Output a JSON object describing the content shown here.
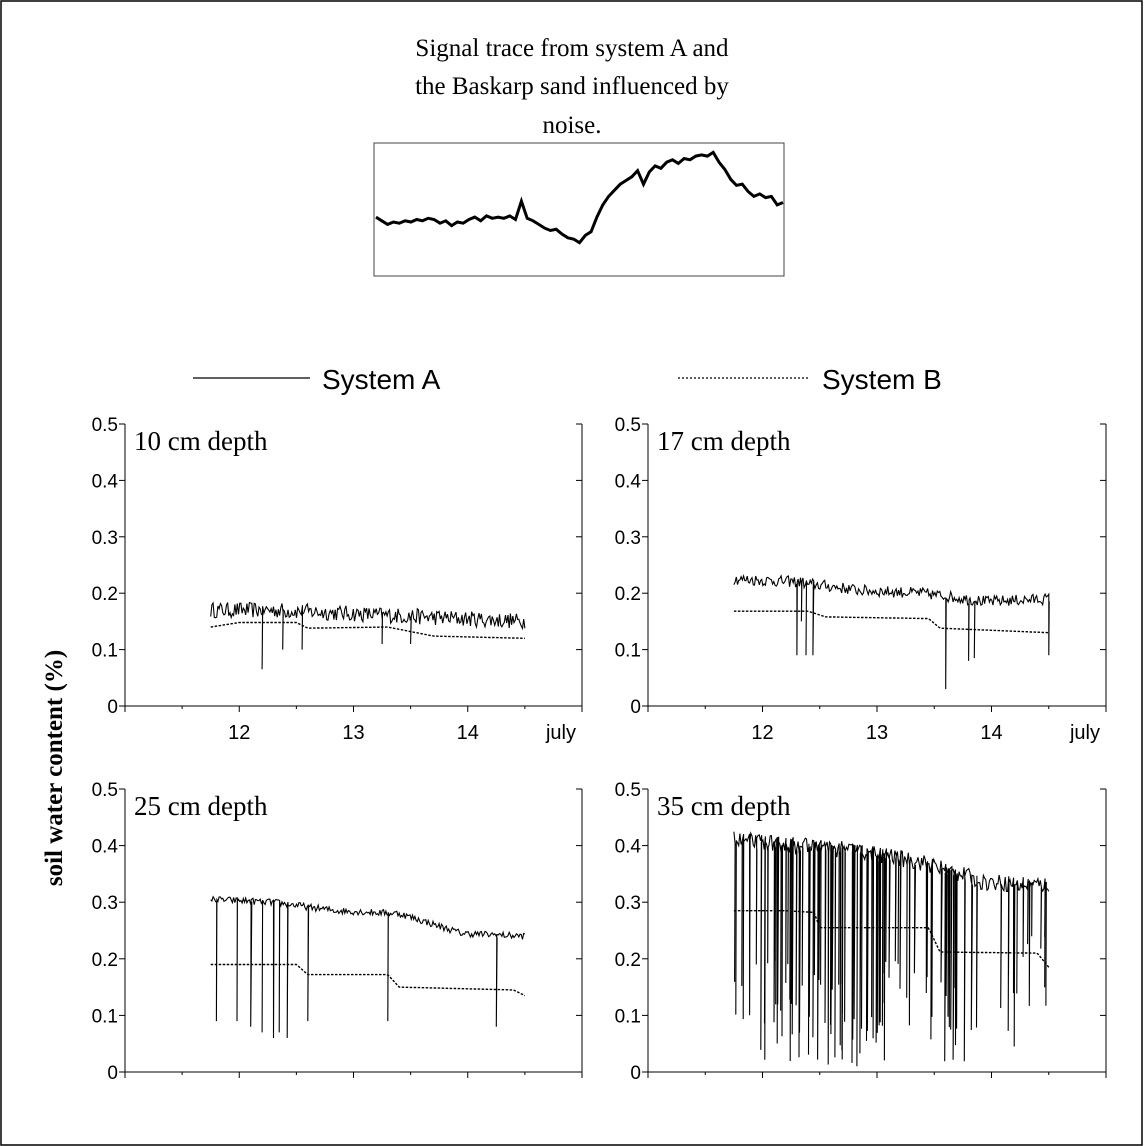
{
  "inset": {
    "title_lines": [
      "Signal trace from system A and",
      "the Baskarp sand influenced by",
      "noise."
    ],
    "trace": [
      0.45,
      0.42,
      0.39,
      0.41,
      0.4,
      0.42,
      0.41,
      0.43,
      0.42,
      0.44,
      0.43,
      0.4,
      0.42,
      0.38,
      0.41,
      0.4,
      0.43,
      0.45,
      0.42,
      0.46,
      0.44,
      0.45,
      0.44,
      0.46,
      0.43,
      0.58,
      0.44,
      0.42,
      0.39,
      0.36,
      0.34,
      0.35,
      0.31,
      0.28,
      0.27,
      0.24,
      0.3,
      0.33,
      0.45,
      0.55,
      0.62,
      0.67,
      0.72,
      0.75,
      0.78,
      0.83,
      0.72,
      0.82,
      0.87,
      0.85,
      0.9,
      0.92,
      0.89,
      0.93,
      0.92,
      0.95,
      0.96,
      0.95,
      0.98,
      0.9,
      0.84,
      0.76,
      0.71,
      0.72,
      0.66,
      0.62,
      0.64,
      0.61,
      0.62,
      0.55,
      0.57
    ]
  },
  "legend": {
    "a": "System A",
    "b": "System B"
  },
  "ylabel": "soil water content (%)",
  "chart_data": [
    {
      "type": "line",
      "panel": "10 cm depth",
      "xlabel": "july",
      "x_ticks": [
        "12",
        "13",
        "14"
      ],
      "xlim": [
        11,
        15
      ],
      "ylim": [
        0,
        0.5
      ],
      "y_ticks": [
        "0",
        "0.1",
        "0.2",
        "0.3",
        "0.4",
        "0.5"
      ],
      "series": [
        {
          "name": "System A",
          "dashed": false,
          "x_range": [
            11.75,
            14.5
          ],
          "baseline": [
            0.17,
            0.17,
            0.165,
            0.16,
            0.155,
            0.15
          ],
          "noise": 0.014,
          "spikes": [
            [
              12.2,
              0.065
            ],
            [
              12.38,
              0.1
            ],
            [
              12.55,
              0.1
            ],
            [
              13.25,
              0.11
            ],
            [
              13.5,
              0.11
            ]
          ]
        },
        {
          "name": "System B",
          "dashed": true,
          "x_range": [
            11.75,
            14.5
          ],
          "points": [
            [
              11.75,
              0.14
            ],
            [
              12.0,
              0.148
            ],
            [
              12.5,
              0.148
            ],
            [
              12.6,
              0.138
            ],
            [
              13.3,
              0.14
            ],
            [
              13.7,
              0.124
            ],
            [
              14.5,
              0.12
            ]
          ]
        }
      ]
    },
    {
      "type": "line",
      "panel": "17 cm depth",
      "xlabel": "july",
      "x_ticks": [
        "12",
        "13",
        "14"
      ],
      "xlim": [
        11,
        15
      ],
      "ylim": [
        0,
        0.5
      ],
      "y_ticks": [
        "0",
        "0.1",
        "0.2",
        "0.3",
        "0.4",
        "0.5"
      ],
      "series": [
        {
          "name": "System A",
          "dashed": false,
          "x_range": [
            11.75,
            14.5
          ],
          "baseline": [
            0.225,
            0.22,
            0.205,
            0.2,
            0.185,
            0.19
          ],
          "noise": 0.01,
          "spikes": [
            [
              12.3,
              0.09
            ],
            [
              12.34,
              0.15
            ],
            [
              12.38,
              0.09
            ],
            [
              12.44,
              0.09
            ],
            [
              13.6,
              0.03
            ],
            [
              13.8,
              0.08
            ],
            [
              13.85,
              0.085
            ],
            [
              14.5,
              0.09
            ]
          ]
        },
        {
          "name": "System B",
          "dashed": true,
          "x_range": [
            11.75,
            14.5
          ],
          "points": [
            [
              11.75,
              0.168
            ],
            [
              12.4,
              0.168
            ],
            [
              12.55,
              0.158
            ],
            [
              13.45,
              0.155
            ],
            [
              13.55,
              0.138
            ],
            [
              14.5,
              0.13
            ]
          ]
        }
      ]
    },
    {
      "type": "line",
      "panel": "25 cm depth",
      "xlabel": "",
      "x_ticks": [
        "",
        "",
        ""
      ],
      "xlim": [
        11,
        15
      ],
      "ylim": [
        0,
        0.5
      ],
      "y_ticks": [
        "0",
        "0.1",
        "0.2",
        "0.3",
        "0.4",
        "0.5"
      ],
      "series": [
        {
          "name": "System A",
          "dashed": false,
          "x_range": [
            11.75,
            14.5
          ],
          "baseline": [
            0.305,
            0.3,
            0.285,
            0.28,
            0.245,
            0.24
          ],
          "noise": 0.006,
          "spikes": [
            [
              11.8,
              0.09
            ],
            [
              11.98,
              0.09
            ],
            [
              12.1,
              0.08
            ],
            [
              12.2,
              0.07
            ],
            [
              12.3,
              0.06
            ],
            [
              12.35,
              0.07
            ],
            [
              12.42,
              0.06
            ],
            [
              12.6,
              0.09
            ],
            [
              13.3,
              0.09
            ],
            [
              14.25,
              0.08
            ]
          ]
        },
        {
          "name": "System B",
          "dashed": true,
          "x_range": [
            11.75,
            14.5
          ],
          "points": [
            [
              11.75,
              0.19
            ],
            [
              12.5,
              0.19
            ],
            [
              12.6,
              0.172
            ],
            [
              13.3,
              0.172
            ],
            [
              13.4,
              0.15
            ],
            [
              14.4,
              0.145
            ],
            [
              14.5,
              0.135
            ]
          ]
        }
      ]
    },
    {
      "type": "line",
      "panel": "35 cm depth",
      "xlabel": "",
      "x_ticks": [
        "",
        "",
        ""
      ],
      "xlim": [
        11,
        15
      ],
      "ylim": [
        0,
        0.5
      ],
      "y_ticks": [
        "0",
        "0.1",
        "0.2",
        "0.3",
        "0.4",
        "0.5"
      ],
      "series": [
        {
          "name": "System A",
          "dashed": false,
          "x_range": [
            11.75,
            14.5
          ],
          "baseline": [
            0.41,
            0.4,
            0.39,
            0.37,
            0.335,
            0.33
          ],
          "noise": 0.015,
          "spikes_random": {
            "from": 11.75,
            "to": 13.9,
            "count": 95,
            "min": 0.01,
            "max": 0.2
          }
        },
        {
          "name": "System B",
          "dashed": true,
          "x_range": [
            11.75,
            14.5
          ],
          "points": [
            [
              11.75,
              0.285
            ],
            [
              12.2,
              0.285
            ],
            [
              12.45,
              0.282
            ],
            [
              12.5,
              0.255
            ],
            [
              13.45,
              0.255
            ],
            [
              13.55,
              0.212
            ],
            [
              14.4,
              0.21
            ],
            [
              14.5,
              0.185
            ]
          ]
        }
      ]
    }
  ]
}
